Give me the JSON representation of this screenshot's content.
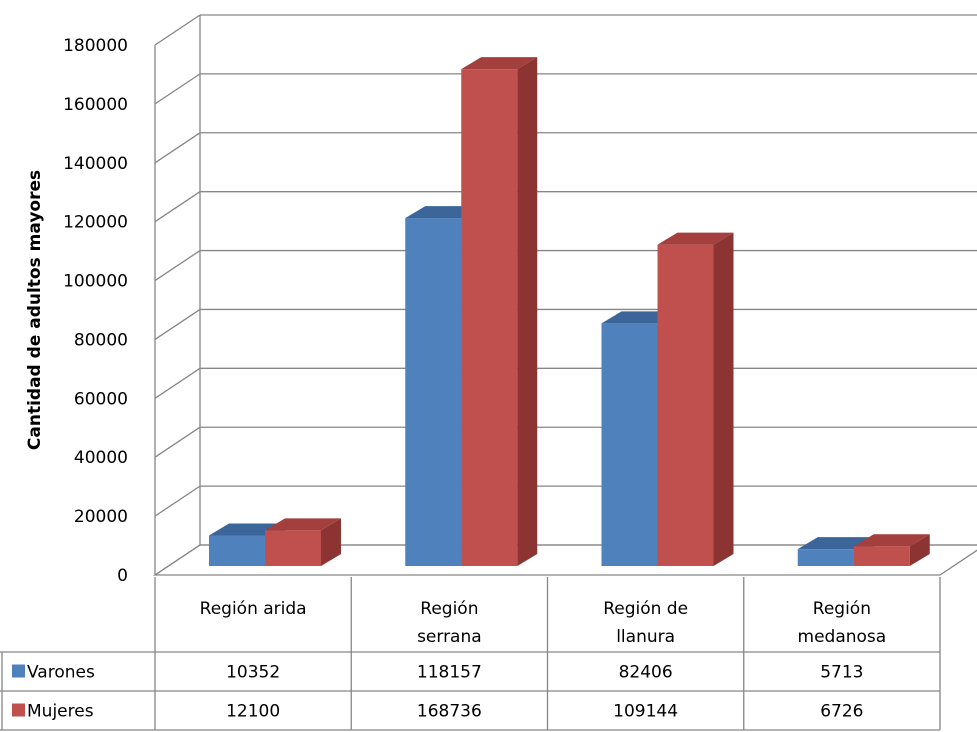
{
  "chart_data": {
    "type": "bar",
    "ylabel": "Cantidad de adultos mayores",
    "xlabel": "",
    "title": "",
    "ylim": [
      0,
      180000
    ],
    "yticks": [
      0,
      20000,
      40000,
      60000,
      80000,
      100000,
      120000,
      140000,
      160000,
      180000
    ],
    "categories": [
      [
        "Región arida"
      ],
      [
        "Región",
        "serrana"
      ],
      [
        "Región de",
        "llanura"
      ],
      [
        "Región",
        "medanosa"
      ]
    ],
    "series": [
      {
        "name": "Varones",
        "color": "#4f81bd",
        "side": "#385d8a",
        "top": "#3c6699",
        "values": [
          10352,
          118157,
          82406,
          5713
        ]
      },
      {
        "name": "Mujeres",
        "color": "#c0504d",
        "side": "#8b3432",
        "top": "#a33f3c",
        "values": [
          12100,
          168736,
          109144,
          6726
        ]
      }
    ],
    "grid": true,
    "legend": "data-table",
    "three_d": true
  }
}
